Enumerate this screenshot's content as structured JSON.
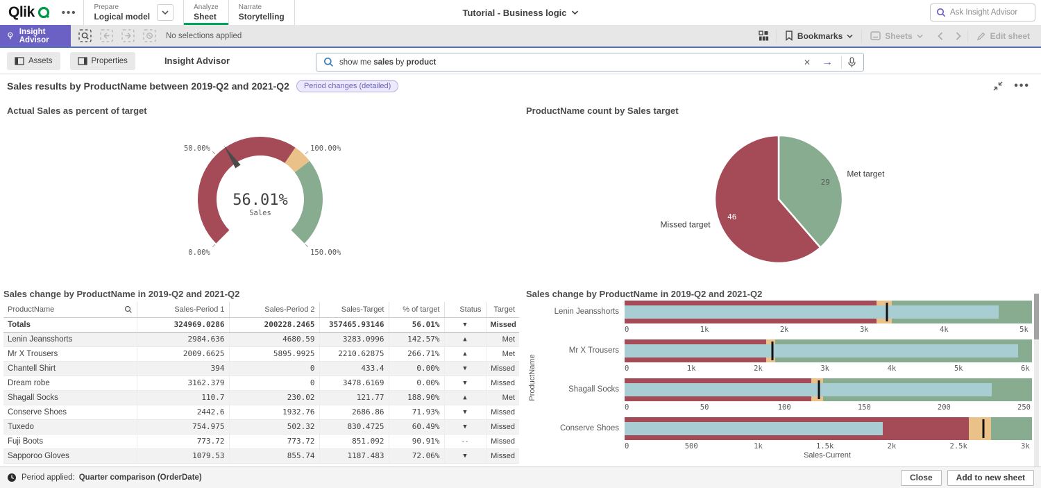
{
  "colors": {
    "red": "#a54b57",
    "tan": "#e9c189",
    "green": "#88ac90",
    "teal": "#a8cdd3",
    "purple": "#6b60c4",
    "qlik_green": "#009845",
    "active_tab_green": "#00a659",
    "met_text": "#73a287",
    "missed_text": "#b96868"
  },
  "topbar": {
    "logo": "Qlik",
    "tabs": [
      {
        "group": "Prepare",
        "label": "Logical model"
      },
      {
        "group": "Analyze",
        "label": "Sheet"
      },
      {
        "group": "Narrate",
        "label": "Storytelling"
      }
    ],
    "app_title": "Tutorial - Business logic",
    "search_placeholder": "Ask Insight Advisor"
  },
  "selbar": {
    "insight_advisor": "Insight Advisor",
    "no_selections": "No selections applied",
    "bookmarks": "Bookmarks",
    "sheets": "Sheets",
    "edit_sheet": "Edit sheet"
  },
  "subbar": {
    "assets": "Assets",
    "properties": "Properties",
    "title": "Insight Advisor",
    "search_value_parts": [
      {
        "t": "show me ",
        "b": false
      },
      {
        "t": "sales",
        "b": true
      },
      {
        "t": " by ",
        "b": false
      },
      {
        "t": "product",
        "b": true
      }
    ]
  },
  "result_header": {
    "title": "Sales results by ProductName between 2019-Q2 and 2021-Q2",
    "badge": "Period changes (detailed)"
  },
  "chart_data": [
    {
      "type": "gauge",
      "title": "Actual Sales as percent of target",
      "value": 56.01,
      "value_label": "56.01%",
      "measure_label": "Sales",
      "min": 0,
      "max": 150,
      "ticks": [
        {
          "v": 0,
          "label": "0.00%"
        },
        {
          "v": 50,
          "label": "50.00%"
        },
        {
          "v": 100,
          "label": "100.00%"
        },
        {
          "v": 150,
          "label": "150.00%"
        }
      ],
      "segments": [
        {
          "from": 0,
          "to": 94,
          "color": "red"
        },
        {
          "from": 94,
          "to": 104,
          "color": "tan"
        },
        {
          "from": 104,
          "to": 150,
          "color": "green"
        }
      ]
    },
    {
      "type": "pie",
      "title": "ProductName count by Sales target",
      "slices": [
        {
          "label": "Met target",
          "value": 29,
          "color": "green",
          "value_color": "#595959"
        },
        {
          "label": "Missed target",
          "value": 46,
          "color": "red",
          "value_color": "#ffffff"
        }
      ]
    },
    {
      "type": "table",
      "title": "Sales change by ProductName in 2019-Q2 and 2021-Q2",
      "headers": [
        "ProductName",
        "Sales-Period 1",
        "Sales-Period 2",
        "Sales-Target",
        "% of target",
        "Status",
        "Target"
      ],
      "totals": {
        "name": "Totals",
        "p1": "324969.0286",
        "p2": "200228.2465",
        "target": "357465.93146",
        "pct": "56.01%",
        "status": "down",
        "result": "Missed"
      },
      "rows": [
        {
          "name": "Lenin Jeansshorts",
          "p1": "2984.636",
          "p2": "4680.59",
          "target": "3283.0996",
          "pct": "142.57%",
          "status": "up",
          "result": "Met"
        },
        {
          "name": "Mr X Trousers",
          "p1": "2009.6625",
          "p2": "5895.9925",
          "target": "2210.62875",
          "pct": "266.71%",
          "status": "up",
          "result": "Met"
        },
        {
          "name": "Chantell Shirt",
          "p1": "394",
          "p2": "0",
          "target": "433.4",
          "pct": "0.00%",
          "status": "down",
          "result": "Missed"
        },
        {
          "name": "Dream robe",
          "p1": "3162.379",
          "p2": "0",
          "target": "3478.6169",
          "pct": "0.00%",
          "status": "down",
          "result": "Missed"
        },
        {
          "name": "Shagall Socks",
          "p1": "110.7",
          "p2": "230.02",
          "target": "121.77",
          "pct": "188.90%",
          "status": "up",
          "result": "Met"
        },
        {
          "name": "Conserve Shoes",
          "p1": "2442.6",
          "p2": "1932.76",
          "target": "2686.86",
          "pct": "71.93%",
          "status": "down",
          "result": "Missed"
        },
        {
          "name": "Tuxedo",
          "p1": "754.975",
          "p2": "502.32",
          "target": "830.4725",
          "pct": "60.49%",
          "status": "down",
          "result": "Missed"
        },
        {
          "name": "Fuji Boots",
          "p1": "773.72",
          "p2": "773.72",
          "target": "851.092",
          "pct": "90.91%",
          "status": "dash",
          "result": "Missed"
        },
        {
          "name": "Sapporoo Gloves",
          "p1": "1079.53",
          "p2": "855.74",
          "target": "1187.483",
          "pct": "72.06%",
          "status": "down",
          "result": "Missed"
        }
      ]
    },
    {
      "type": "bullet",
      "title": "Sales change by ProductName in 2019-Q2 and 2021-Q2",
      "xlabel": "Sales-Current",
      "ylabel": "ProductName",
      "items": [
        {
          "label": "Lenin Jeansshorts",
          "max": 5100,
          "measure": 4680.59,
          "target": 3283.0996,
          "red_end": 3152,
          "tan_end": 3349,
          "ticks": [
            [
              0,
              "0"
            ],
            [
              1000,
              "1k"
            ],
            [
              2000,
              "2k"
            ],
            [
              3000,
              "3k"
            ],
            [
              4000,
              "4k"
            ],
            [
              5000,
              "5k"
            ]
          ]
        },
        {
          "label": "Mr X Trousers",
          "max": 6100,
          "measure": 5895.9925,
          "target": 2210.62875,
          "red_end": 2122,
          "tan_end": 2255,
          "ticks": [
            [
              0,
              "0"
            ],
            [
              1000,
              "1k"
            ],
            [
              2000,
              "2k"
            ],
            [
              3000,
              "3k"
            ],
            [
              4000,
              "4k"
            ],
            [
              5000,
              "5k"
            ],
            [
              6000,
              "6k"
            ]
          ]
        },
        {
          "label": "Shagall Socks",
          "max": 255,
          "measure": 230.02,
          "target": 121.77,
          "red_end": 116.9,
          "tan_end": 124.2,
          "ticks": [
            [
              0,
              "0"
            ],
            [
              50,
              "50"
            ],
            [
              100,
              "100"
            ],
            [
              150,
              "150"
            ],
            [
              200,
              "200"
            ],
            [
              250,
              "250"
            ]
          ]
        },
        {
          "label": "Conserve Shoes",
          "max": 3050,
          "measure": 1932.76,
          "target": 2686.86,
          "red_end": 2579,
          "tan_end": 2741,
          "ticks": [
            [
              0,
              "0"
            ],
            [
              500,
              "500"
            ],
            [
              1000,
              "1k"
            ],
            [
              1500,
              "1.5k"
            ],
            [
              2000,
              "2k"
            ],
            [
              2500,
              "2.5k"
            ],
            [
              3000,
              "3k"
            ]
          ]
        }
      ]
    }
  ],
  "footer": {
    "period_label": "Period applied:",
    "period_value": "Quarter comparison (OrderDate)",
    "close": "Close",
    "add": "Add to new sheet"
  }
}
